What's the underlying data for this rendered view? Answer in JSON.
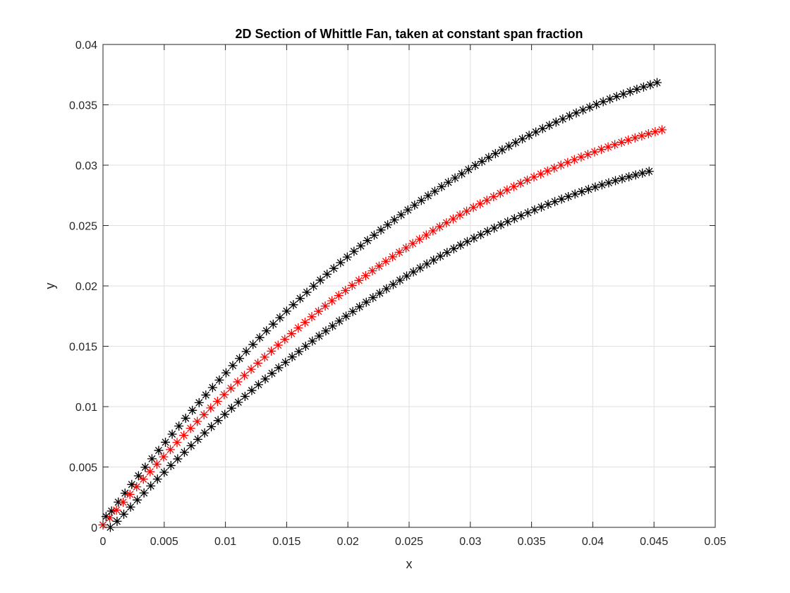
{
  "chart_data": {
    "type": "scatter",
    "title": "2D Section of Whittle Fan, taken at constant span fraction",
    "xlabel": "x",
    "ylabel": "y",
    "xlim": [
      0,
      0.05
    ],
    "ylim": [
      0,
      0.04
    ],
    "xticks": [
      0,
      0.005,
      0.01,
      0.015,
      0.02,
      0.025,
      0.03,
      0.035,
      0.04,
      0.045,
      0.05
    ],
    "yticks": [
      0,
      0.005,
      0.01,
      0.015,
      0.02,
      0.025,
      0.03,
      0.035,
      0.04
    ],
    "xtick_labels": [
      "0",
      "0.005",
      "0.01",
      "0.015",
      "0.02",
      "0.025",
      "0.03",
      "0.035",
      "0.04",
      "0.045",
      "0.05"
    ],
    "ytick_labels": [
      "0",
      "0.005",
      "0.01",
      "0.015",
      "0.02",
      "0.025",
      "0.03",
      "0.035",
      "0.04"
    ],
    "grid": true,
    "marker": "*",
    "series": [
      {
        "color": "#000000",
        "x": [
          0.00025,
          0.0007,
          0.00125,
          0.0018,
          0.00235,
          0.0029,
          0.00345,
          0.004,
          0.00455,
          0.0051,
          0.00565,
          0.0062,
          0.00675,
          0.0073,
          0.00785,
          0.0084,
          0.00895,
          0.0095,
          0.01005,
          0.0106,
          0.01115,
          0.0117,
          0.01225,
          0.0128,
          0.01335,
          0.0139,
          0.01445,
          0.015,
          0.01555,
          0.0161,
          0.01665,
          0.0172,
          0.01775,
          0.0183,
          0.01885,
          0.0194,
          0.01995,
          0.0205,
          0.02105,
          0.0216,
          0.02215,
          0.0227,
          0.02325,
          0.0238,
          0.02435,
          0.0249,
          0.02545,
          0.026,
          0.02655,
          0.0271,
          0.02765,
          0.0282,
          0.02875,
          0.0293,
          0.02985,
          0.0304,
          0.03095,
          0.0315,
          0.03205,
          0.0326,
          0.03315,
          0.0337,
          0.03425,
          0.0348,
          0.03535,
          0.0359,
          0.03645,
          0.037,
          0.03755,
          0.0381,
          0.03865,
          0.0392,
          0.03975,
          0.0403,
          0.04085,
          0.0414,
          0.04195,
          0.0425,
          0.04305,
          0.0436,
          0.04415,
          0.0447,
          0.04525
        ],
        "y": [
          0.0009,
          0.00135,
          0.00209,
          0.00283,
          0.00355,
          0.00427,
          0.00498,
          0.00568,
          0.00637,
          0.00705,
          0.00772,
          0.00839,
          0.00904,
          0.00969,
          0.01033,
          0.01096,
          0.01158,
          0.0122,
          0.0128,
          0.0134,
          0.01399,
          0.01457,
          0.01515,
          0.01572,
          0.01628,
          0.01683,
          0.01737,
          0.01791,
          0.01844,
          0.01896,
          0.01947,
          0.01998,
          0.02048,
          0.02097,
          0.02145,
          0.02193,
          0.02239,
          0.02286,
          0.02331,
          0.02376,
          0.0242,
          0.02463,
          0.02506,
          0.02547,
          0.02589,
          0.02629,
          0.02669,
          0.02708,
          0.02747,
          0.02784,
          0.02822,
          0.02858,
          0.02894,
          0.02929,
          0.02964,
          0.02998,
          0.03031,
          0.03064,
          0.03096,
          0.03127,
          0.03158,
          0.03188,
          0.03218,
          0.03247,
          0.03275,
          0.03303,
          0.0333,
          0.03357,
          0.03383,
          0.03408,
          0.03433,
          0.03457,
          0.0348,
          0.03503,
          0.03526,
          0.03548,
          0.03569,
          0.03589,
          0.0361,
          0.03629,
          0.03648,
          0.03666,
          0.03684
        ]
      },
      {
        "color": "#000000",
        "x": [
          0.0006,
          0.00115,
          0.0017,
          0.00225,
          0.0028,
          0.00335,
          0.0039,
          0.00445,
          0.005,
          0.00555,
          0.0061,
          0.00665,
          0.0072,
          0.00775,
          0.0083,
          0.00885,
          0.0094,
          0.00995,
          0.0105,
          0.01105,
          0.0116,
          0.01215,
          0.0127,
          0.01325,
          0.0138,
          0.01435,
          0.0149,
          0.01545,
          0.016,
          0.01655,
          0.0171,
          0.01765,
          0.0182,
          0.01875,
          0.0193,
          0.01985,
          0.0204,
          0.02095,
          0.0215,
          0.02205,
          0.0226,
          0.02315,
          0.0237,
          0.02425,
          0.0248,
          0.02535,
          0.0259,
          0.02645,
          0.027,
          0.02755,
          0.0281,
          0.02865,
          0.0292,
          0.02975,
          0.0303,
          0.03085,
          0.0314,
          0.03195,
          0.0325,
          0.03305,
          0.0336,
          0.03415,
          0.0347,
          0.03525,
          0.0358,
          0.03635,
          0.0369,
          0.03745,
          0.038,
          0.03855,
          0.0391,
          0.03965,
          0.0402,
          0.04075,
          0.0413,
          0.04185,
          0.0424,
          0.04295,
          0.0435,
          0.04405,
          0.0446
        ],
        "y": [
          0,
          0.0005,
          0.00109,
          0.00168,
          0.00227,
          0.00285,
          0.00343,
          0.004,
          0.00456,
          0.00512,
          0.00567,
          0.00622,
          0.00676,
          0.00729,
          0.00782,
          0.00834,
          0.00885,
          0.00936,
          0.00987,
          0.01036,
          0.01085,
          0.01134,
          0.01182,
          0.01229,
          0.01276,
          0.01322,
          0.01367,
          0.01412,
          0.01456,
          0.015,
          0.01543,
          0.01585,
          0.01627,
          0.01668,
          0.01709,
          0.01749,
          0.01788,
          0.01827,
          0.01865,
          0.01903,
          0.0194,
          0.01976,
          0.02012,
          0.02047,
          0.02082,
          0.02116,
          0.02149,
          0.02182,
          0.02214,
          0.02246,
          0.02277,
          0.02308,
          0.02338,
          0.02367,
          0.02396,
          0.02424,
          0.02452,
          0.02479,
          0.02506,
          0.02532,
          0.02557,
          0.02582,
          0.02606,
          0.0263,
          0.02653,
          0.02676,
          0.02698,
          0.02719,
          0.0274,
          0.02761,
          0.02781,
          0.028,
          0.02819,
          0.02837,
          0.02854,
          0.02872,
          0.02888,
          0.02904,
          0.02919,
          0.02934,
          0.02949
        ]
      },
      {
        "color": "#ff0000",
        "x": [
          0,
          0.00055,
          0.0011,
          0.00165,
          0.0022,
          0.00275,
          0.0033,
          0.00385,
          0.0044,
          0.00495,
          0.0055,
          0.00605,
          0.0066,
          0.00715,
          0.0077,
          0.00825,
          0.0088,
          0.00935,
          0.0099,
          0.01045,
          0.011,
          0.01155,
          0.0121,
          0.01265,
          0.0132,
          0.01375,
          0.0143,
          0.01485,
          0.0154,
          0.01595,
          0.0165,
          0.01705,
          0.0176,
          0.01815,
          0.0187,
          0.01925,
          0.0198,
          0.02035,
          0.0209,
          0.02145,
          0.022,
          0.02255,
          0.0231,
          0.02365,
          0.0242,
          0.02475,
          0.0253,
          0.02585,
          0.0264,
          0.02695,
          0.0275,
          0.02805,
          0.0286,
          0.02915,
          0.0297,
          0.03025,
          0.0308,
          0.03135,
          0.0319,
          0.03245,
          0.033,
          0.03355,
          0.0341,
          0.03465,
          0.0352,
          0.03575,
          0.0363,
          0.03685,
          0.0374,
          0.03795,
          0.0385,
          0.03905,
          0.0396,
          0.04015,
          0.0407,
          0.04125,
          0.0418,
          0.04235,
          0.0429,
          0.04345,
          0.044,
          0.04455,
          0.0451,
          0.04565
        ],
        "y": [
          0.0002,
          0.00078,
          0.00143,
          0.00208,
          0.00273,
          0.00336,
          0.00399,
          0.00461,
          0.00523,
          0.00584,
          0.00644,
          0.00703,
          0.00762,
          0.0082,
          0.00877,
          0.00933,
          0.00989,
          0.01044,
          0.01099,
          0.01152,
          0.01205,
          0.01258,
          0.01309,
          0.0136,
          0.0141,
          0.0146,
          0.01509,
          0.01557,
          0.01605,
          0.01652,
          0.01698,
          0.01744,
          0.01789,
          0.01833,
          0.01877,
          0.0192,
          0.01962,
          0.02004,
          0.02045,
          0.02085,
          0.02125,
          0.02164,
          0.02203,
          0.02241,
          0.02278,
          0.02315,
          0.02351,
          0.02386,
          0.02421,
          0.02456,
          0.0249,
          0.02523,
          0.02555,
          0.02587,
          0.02619,
          0.0265,
          0.0268,
          0.02709,
          0.02739,
          0.02767,
          0.02795,
          0.02823,
          0.0285,
          0.02876,
          0.02902,
          0.02927,
          0.02952,
          0.02976,
          0.03,
          0.03023,
          0.03046,
          0.03068,
          0.03089,
          0.0311,
          0.03131,
          0.03151,
          0.0317,
          0.03189,
          0.03208,
          0.03226,
          0.03243,
          0.0326,
          0.03277,
          0.03293
        ]
      }
    ]
  },
  "colors": {
    "background": "#ffffff",
    "axes": "#262626",
    "grid": "#dfdfdf",
    "series_black": "#000000",
    "series_red": "#ff0000"
  }
}
